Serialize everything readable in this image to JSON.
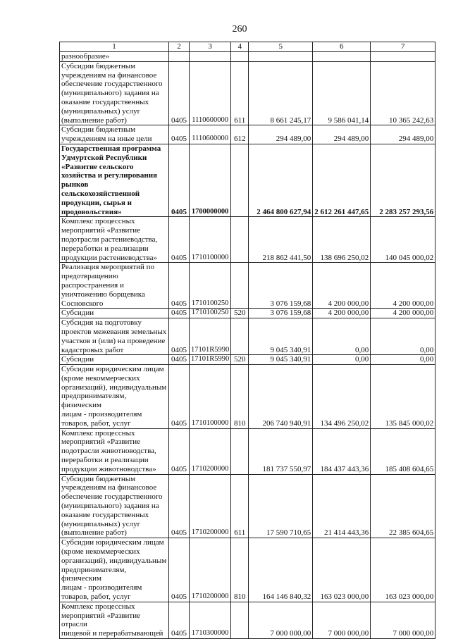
{
  "page_number": "260",
  "table": {
    "headers": [
      "1",
      "2",
      "3",
      "4",
      "5",
      "6",
      "7"
    ],
    "rows": [
      {
        "lines": [
          "разнообразие»"
        ],
        "c2": "",
        "c3": "",
        "c4": "",
        "c5": "",
        "c6": "",
        "c7": ""
      },
      {
        "lines": [
          "Субсидии бюджетным",
          "учреждениям на финансовое",
          "обеспечение государственного",
          "(муниципального) задания на",
          "оказание государственных",
          "(муниципальных) услуг",
          "(выполнение работ)"
        ],
        "c2": "0405",
        "c3": "1110600000",
        "c4": "611",
        "c5": "8 661 245,17",
        "c6": "9 586 041,14",
        "c7": "10 365 242,63"
      },
      {
        "lines": [
          "Субсидии бюджетным",
          "учреждениям на иные цели"
        ],
        "c2": "0405",
        "c3": "1110600000",
        "c4": "612",
        "c5": "294 489,00",
        "c6": "294 489,00",
        "c7": "294 489,00"
      },
      {
        "bold": true,
        "lines": [
          "Государственная программа",
          "Удмуртской Республики",
          "«Развитие сельского",
          "хозяйства и регулирования",
          "рынков",
          "сельскохозяйственной",
          "продукции, сырья и",
          "продовольствия»"
        ],
        "c2": "0405",
        "c3": "1700000000",
        "c4": "",
        "c5": "2 464 800 627,94",
        "c6": "2 612 261 447,65",
        "c7": "2 283 257 293,56"
      },
      {
        "lines": [
          "Комплекс процессных",
          "мероприятий «Развитие",
          "подотрасли растениеводства,",
          "переработки и реализации",
          "продукции растениеводства»"
        ],
        "c2": "0405",
        "c3": "1710100000",
        "c4": "",
        "c5": "218 862 441,50",
        "c6": "138 696 250,02",
        "c7": "140 045 000,02"
      },
      {
        "lines": [
          "Реализация мероприятий по",
          "предотвращению",
          "распространения и",
          "уничтожению борщевика",
          "Сосновского"
        ],
        "c2": "0405",
        "c3": "1710100250",
        "c4": "",
        "c5": "3 076 159,68",
        "c6": "4 200 000,00",
        "c7": "4 200 000,00"
      },
      {
        "lines": [
          "Субсидии"
        ],
        "c2": "0405",
        "c3": "1710100250",
        "c4": "520",
        "c5": "3 076 159,68",
        "c6": "4 200 000,00",
        "c7": "4 200 000,00"
      },
      {
        "lines": [
          "Субсидия на подготовку",
          "проектов межевания земельных",
          "участков и (или) на проведение",
          "кадастровых работ"
        ],
        "c2": "0405",
        "c3": "17101R5990",
        "c4": "",
        "c5": "9 045 340,91",
        "c6": "0,00",
        "c7": "0,00"
      },
      {
        "lines": [
          "Субсидии"
        ],
        "c2": "0405",
        "c3": "17101R5990",
        "c4": "520",
        "c5": "9 045 340,91",
        "c6": "0,00",
        "c7": "0,00"
      },
      {
        "lines": [
          "Субсидии юридическим лицам",
          "(кроме некоммерческих",
          "организаций), индивидуальным",
          "предпринимателям, физическим",
          "лицам - производителям",
          "товаров, работ, услуг"
        ],
        "c2": "0405",
        "c3": "1710100000",
        "c4": "810",
        "c5": "206 740 940,91",
        "c6": "134 496 250,02",
        "c7": "135 845 000,02"
      },
      {
        "lines": [
          "Комплекс процессных",
          "мероприятий «Развитие",
          "подотрасли животноводства,",
          "переработки и реализации",
          "продукции животноводства»"
        ],
        "c2": "0405",
        "c3": "1710200000",
        "c4": "",
        "c5": "181 737 550,97",
        "c6": "184 437 443,36",
        "c7": "185 408 604,65"
      },
      {
        "lines": [
          "Субсидии бюджетным",
          "учреждениям на финансовое",
          "обеспечение государственного",
          "(муниципального) задания на",
          "оказание государственных",
          "(муниципальных) услуг",
          "(выполнение работ)"
        ],
        "c2": "0405",
        "c3": "1710200000",
        "c4": "611",
        "c5": "17 590 710,65",
        "c6": "21 414 443,36",
        "c7": "22 385 604,65"
      },
      {
        "lines": [
          "Субсидии юридическим лицам",
          "(кроме некоммерческих",
          "организаций), индивидуальным",
          "предпринимателям, физическим",
          "лицам - производителям",
          "товаров, работ, услуг"
        ],
        "c2": "0405",
        "c3": "1710200000",
        "c4": "810",
        "c5": "164 146 840,32",
        "c6": "163 023 000,00",
        "c7": "163 023 000,00"
      },
      {
        "lines": [
          "Комплекс процессных",
          "мероприятий «Развитие отрасли",
          "пищевой и перерабатывающей"
        ],
        "c2": "0405",
        "c3": "1710300000",
        "c4": "",
        "c5": "7 000 000,00",
        "c6": "7 000 000,00",
        "c7": "7 000 000,00"
      }
    ]
  }
}
